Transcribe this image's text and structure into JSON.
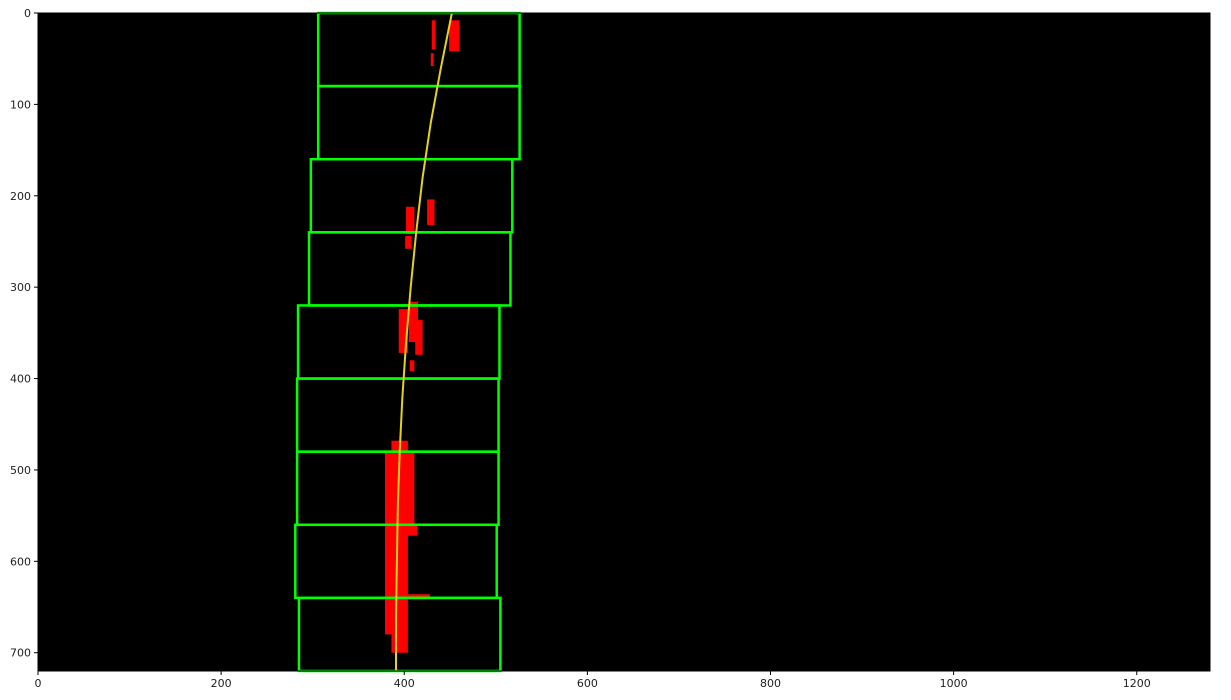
{
  "chart_data": {
    "type": "scatter",
    "title": "",
    "xlabel": "",
    "ylabel": "",
    "xlim": [
      0,
      1280
    ],
    "ylim": [
      720,
      0
    ],
    "background": "#000000",
    "x_ticks": [
      0,
      200,
      400,
      600,
      800,
      1000,
      1200
    ],
    "y_ticks": [
      0,
      100,
      200,
      300,
      400,
      500,
      600,
      700
    ],
    "grid": false,
    "legend": "none",
    "windows": [
      {
        "x0": 306,
        "x1": 526,
        "y0": 0,
        "y1": 80
      },
      {
        "x0": 306,
        "x1": 526,
        "y0": 80,
        "y1": 160
      },
      {
        "x0": 298,
        "x1": 518,
        "y0": 160,
        "y1": 240
      },
      {
        "x0": 296,
        "x1": 516,
        "y0": 240,
        "y1": 320
      },
      {
        "x0": 284,
        "x1": 504,
        "y0": 320,
        "y1": 400
      },
      {
        "x0": 283,
        "x1": 503,
        "y0": 400,
        "y1": 480
      },
      {
        "x0": 283,
        "x1": 503,
        "y0": 480,
        "y1": 560
      },
      {
        "x0": 281,
        "x1": 501,
        "y0": 560,
        "y1": 640
      },
      {
        "x0": 285,
        "x1": 505,
        "y0": 640,
        "y1": 720
      }
    ],
    "lane_pixel_clusters": [
      {
        "x0": 430,
        "x1": 434,
        "y0": 8,
        "y1": 40
      },
      {
        "x0": 429,
        "x1": 432,
        "y0": 44,
        "y1": 58
      },
      {
        "x0": 449,
        "x1": 460,
        "y0": 8,
        "y1": 42
      },
      {
        "x0": 402,
        "x1": 411,
        "y0": 212,
        "y1": 242
      },
      {
        "x0": 425,
        "x1": 433,
        "y0": 204,
        "y1": 232
      },
      {
        "x0": 401,
        "x1": 408,
        "y0": 244,
        "y1": 258
      },
      {
        "x0": 394,
        "x1": 404,
        "y0": 324,
        "y1": 372
      },
      {
        "x0": 405,
        "x1": 415,
        "y0": 316,
        "y1": 360
      },
      {
        "x0": 412,
        "x1": 420,
        "y0": 336,
        "y1": 374
      },
      {
        "x0": 406,
        "x1": 411,
        "y0": 380,
        "y1": 392
      },
      {
        "x0": 386,
        "x1": 404,
        "y0": 468,
        "y1": 700
      },
      {
        "x0": 379,
        "x1": 386,
        "y0": 480,
        "y1": 560
      },
      {
        "x0": 404,
        "x1": 411,
        "y0": 480,
        "y1": 560
      },
      {
        "x0": 379,
        "x1": 386,
        "y0": 560,
        "y1": 680
      },
      {
        "x0": 404,
        "x1": 414,
        "y0": 560,
        "y1": 572
      },
      {
        "x0": 404,
        "x1": 428,
        "y0": 636,
        "y1": 641
      }
    ],
    "fit_curve": {
      "color": "#e6d21c",
      "y": [
        0,
        60,
        120,
        180,
        240,
        300,
        360,
        420,
        480,
        540,
        600,
        660,
        720
      ],
      "x": [
        452,
        440,
        429,
        420,
        413,
        407,
        402,
        398,
        395,
        393,
        392,
        391,
        391
      ]
    },
    "colors": {
      "window": "#00ff00",
      "pixels": "#ff0000",
      "fit": "#e6d21c"
    }
  }
}
